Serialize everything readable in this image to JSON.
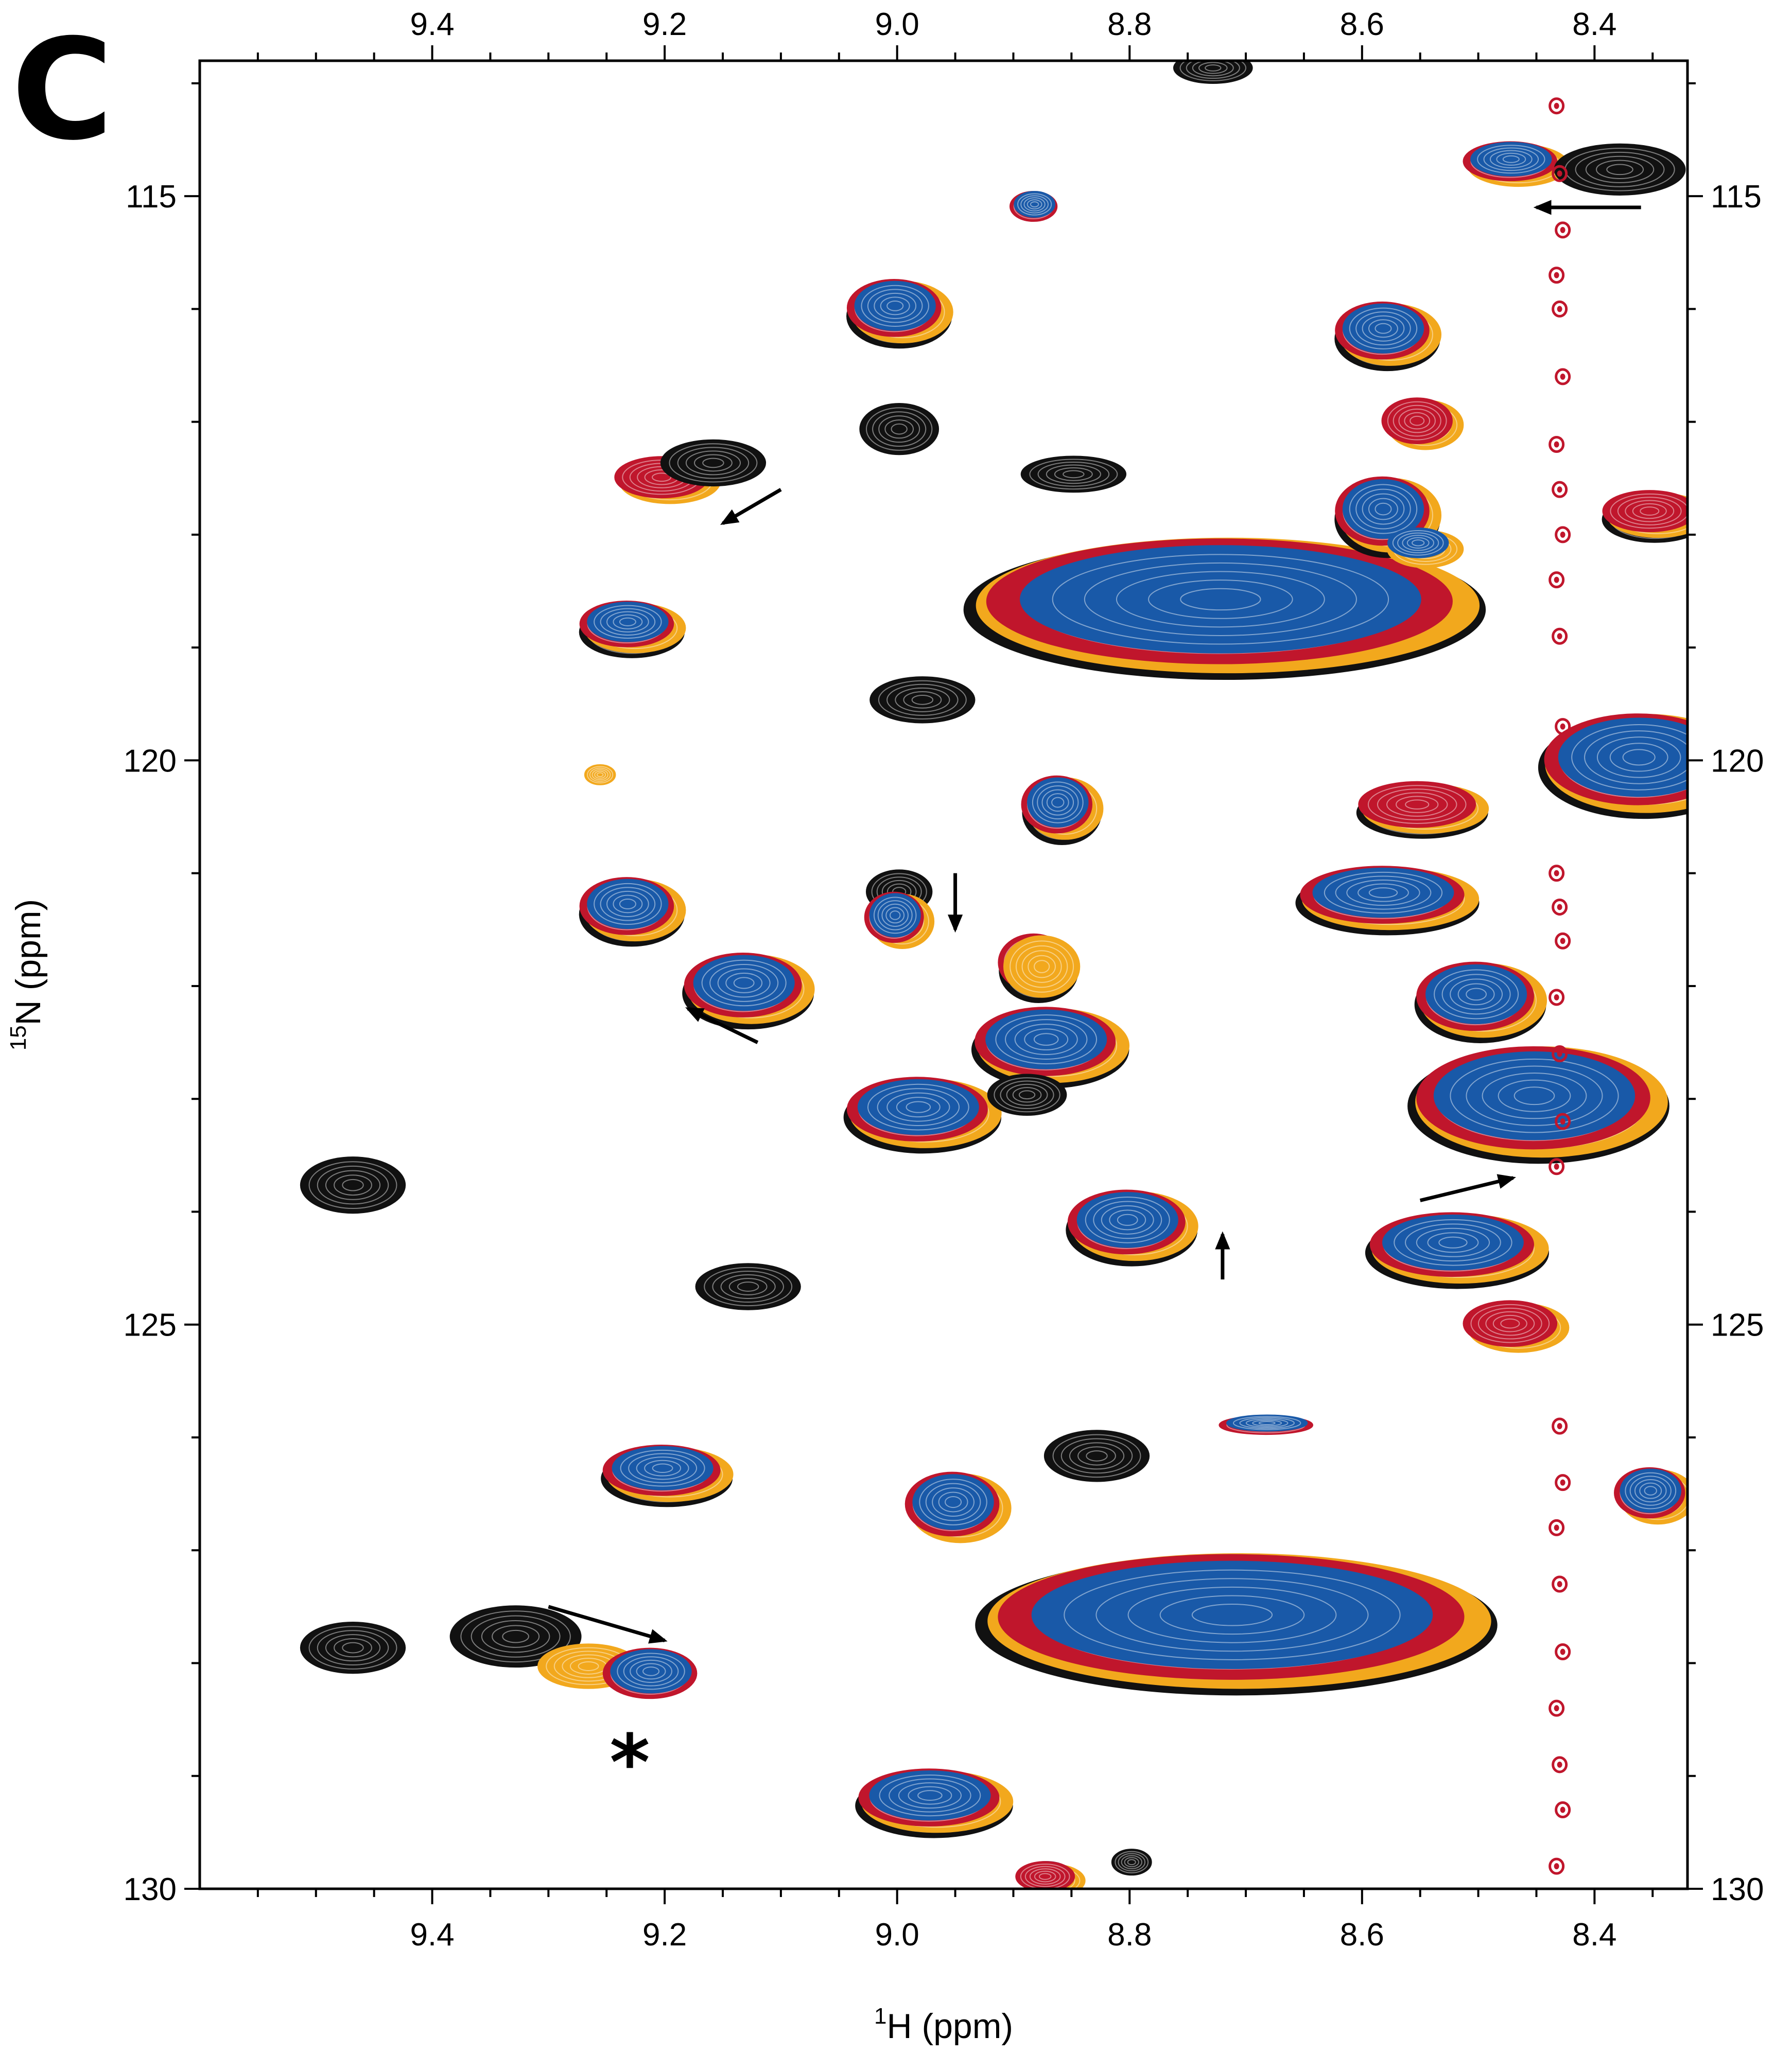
{
  "panel_label": "C",
  "chart_data": {
    "type": "scatter",
    "plot_style": "2D NMR contour overlay (1H-15N HSQC)",
    "xlabel": {
      "isotope": "1",
      "nucleus": "H",
      "unit": "(ppm)"
    },
    "ylabel": {
      "isotope": "15",
      "nucleus": "N",
      "unit": "(ppm)"
    },
    "xlim": [
      9.6,
      8.32
    ],
    "ylim": [
      130,
      113.8
    ],
    "x_reversed": true,
    "y_reversed": true,
    "grid": false,
    "mirror_axes": true,
    "x_ticks": [
      9.4,
      9.2,
      9.0,
      8.8,
      8.6,
      8.4
    ],
    "x_tick_labels": [
      "9.4",
      "9.2",
      "9.0",
      "8.8",
      "8.6",
      "8.4"
    ],
    "y_ticks": [
      115,
      120,
      125,
      130
    ],
    "y_tick_labels": [
      "115",
      "120",
      "125",
      "130"
    ],
    "colors": {
      "black": "#111111",
      "orange": "#f2a81d",
      "red": "#c0162c",
      "blue": "#1959a8"
    },
    "peaks": [
      {
        "x": 9.47,
        "y": 123.7,
        "w": 0.04,
        "h": 0.22,
        "layers": [
          "black"
        ]
      },
      {
        "x": 9.47,
        "y": 127.8,
        "w": 0.04,
        "h": 0.2,
        "layers": [
          "black"
        ]
      },
      {
        "x": 9.33,
        "y": 127.7,
        "w": 0.05,
        "h": 0.24,
        "layers": [
          "black"
        ]
      },
      {
        "x": 9.27,
        "y": 128.0,
        "w": 0.04,
        "h": 0.18,
        "layers": [
          "orange"
        ]
      },
      {
        "x": 9.21,
        "y": 128.1,
        "w": 0.04,
        "h": 0.22,
        "layers": [
          "red",
          "blue"
        ]
      },
      {
        "x": 9.26,
        "y": 120.1,
        "w": 0.012,
        "h": 0.08,
        "layers": [
          "orange"
        ]
      },
      {
        "x": 9.23,
        "y": 121.3,
        "w": 0.04,
        "h": 0.25,
        "layers": [
          "black",
          "orange",
          "red",
          "blue"
        ]
      },
      {
        "x": 9.23,
        "y": 118.8,
        "w": 0.04,
        "h": 0.2,
        "layers": [
          "black",
          "orange",
          "red",
          "blue"
        ]
      },
      {
        "x": 9.2,
        "y": 126.3,
        "w": 0.05,
        "h": 0.22,
        "layers": [
          "black",
          "orange",
          "red",
          "blue"
        ]
      },
      {
        "x": 9.2,
        "y": 117.5,
        "w": 0.04,
        "h": 0.18,
        "layers": [
          "orange",
          "red"
        ]
      },
      {
        "x": 9.16,
        "y": 117.3,
        "w": 0.04,
        "h": 0.18,
        "layers": [
          "black"
        ]
      },
      {
        "x": 9.13,
        "y": 124.6,
        "w": 0.04,
        "h": 0.18,
        "layers": [
          "black"
        ]
      },
      {
        "x": 9.13,
        "y": 122.0,
        "w": 0.05,
        "h": 0.28,
        "layers": [
          "black",
          "orange",
          "red",
          "blue"
        ]
      },
      {
        "x": 9.0,
        "y": 116.0,
        "w": 0.04,
        "h": 0.25,
        "layers": [
          "black",
          "orange",
          "red",
          "blue"
        ]
      },
      {
        "x": 9.0,
        "y": 117.0,
        "w": 0.03,
        "h": 0.2,
        "layers": [
          "black"
        ]
      },
      {
        "x": 8.98,
        "y": 119.4,
        "w": 0.04,
        "h": 0.18,
        "layers": [
          "black"
        ]
      },
      {
        "x": 9.0,
        "y": 121.1,
        "w": 0.025,
        "h": 0.17,
        "layers": [
          "black"
        ]
      },
      {
        "x": 9.0,
        "y": 121.4,
        "w": 0.025,
        "h": 0.22,
        "layers": [
          "orange",
          "red",
          "blue"
        ]
      },
      {
        "x": 8.98,
        "y": 123.1,
        "w": 0.06,
        "h": 0.28,
        "layers": [
          "black",
          "orange",
          "red",
          "blue"
        ]
      },
      {
        "x": 8.95,
        "y": 126.6,
        "w": 0.04,
        "h": 0.28,
        "layers": [
          "orange",
          "red",
          "blue"
        ]
      },
      {
        "x": 8.97,
        "y": 129.2,
        "w": 0.06,
        "h": 0.25,
        "layers": [
          "black",
          "orange",
          "red",
          "blue"
        ]
      },
      {
        "x": 8.88,
        "y": 115.1,
        "w": 0.02,
        "h": 0.13,
        "layers": [
          "red",
          "blue"
        ]
      },
      {
        "x": 8.85,
        "y": 117.4,
        "w": 0.04,
        "h": 0.14,
        "layers": [
          "black"
        ]
      },
      {
        "x": 8.88,
        "y": 121.8,
        "w": 0.03,
        "h": 0.25,
        "layers": [
          "black",
          "red",
          "orange"
        ]
      },
      {
        "x": 8.86,
        "y": 120.4,
        "w": 0.03,
        "h": 0.25,
        "layers": [
          "black",
          "orange",
          "red",
          "blue"
        ]
      },
      {
        "x": 8.87,
        "y": 122.5,
        "w": 0.06,
        "h": 0.3,
        "layers": [
          "black",
          "orange",
          "red",
          "blue"
        ]
      },
      {
        "x": 8.89,
        "y": 122.9,
        "w": 0.03,
        "h": 0.16,
        "layers": [
          "black"
        ]
      },
      {
        "x": 8.83,
        "y": 126.1,
        "w": 0.04,
        "h": 0.2,
        "layers": [
          "black"
        ]
      },
      {
        "x": 8.8,
        "y": 124.1,
        "w": 0.05,
        "h": 0.28,
        "layers": [
          "black",
          "orange",
          "red",
          "blue"
        ]
      },
      {
        "x": 8.87,
        "y": 129.9,
        "w": 0.025,
        "h": 0.13,
        "layers": [
          "blue",
          "orange",
          "red"
        ]
      },
      {
        "x": 8.8,
        "y": 129.7,
        "w": 0.015,
        "h": 0.1,
        "layers": [
          "black"
        ]
      },
      {
        "x": 8.68,
        "y": 125.9,
        "w": 0.04,
        "h": 0.08,
        "layers": [
          "red",
          "blue"
        ]
      },
      {
        "x": 8.73,
        "y": 113.8,
        "w": 0.03,
        "h": 0.12,
        "layers": [
          "black"
        ]
      },
      {
        "x": 8.72,
        "y": 118.6,
        "w": 0.2,
        "h": 0.55,
        "layers": [
          "black",
          "orange",
          "red",
          "blue"
        ]
      },
      {
        "x": 8.71,
        "y": 127.6,
        "w": 0.2,
        "h": 0.55,
        "layers": [
          "black",
          "orange",
          "red",
          "blue"
        ]
      },
      {
        "x": 8.58,
        "y": 116.2,
        "w": 0.04,
        "h": 0.25,
        "layers": [
          "black",
          "orange",
          "red",
          "blue"
        ]
      },
      {
        "x": 8.58,
        "y": 117.8,
        "w": 0.04,
        "h": 0.3,
        "layers": [
          "black",
          "orange",
          "red",
          "blue"
        ]
      },
      {
        "x": 8.55,
        "y": 117.0,
        "w": 0.03,
        "h": 0.2,
        "layers": [
          "orange",
          "red"
        ]
      },
      {
        "x": 8.55,
        "y": 118.1,
        "w": 0.03,
        "h": 0.15,
        "layers": [
          "orange",
          "blue"
        ]
      },
      {
        "x": 8.58,
        "y": 121.2,
        "w": 0.07,
        "h": 0.25,
        "layers": [
          "black",
          "orange",
          "red",
          "blue"
        ]
      },
      {
        "x": 8.55,
        "y": 120.4,
        "w": 0.05,
        "h": 0.2,
        "layers": [
          "black",
          "orange",
          "red"
        ]
      },
      {
        "x": 8.52,
        "y": 124.3,
        "w": 0.07,
        "h": 0.28,
        "layers": [
          "black",
          "orange",
          "red",
          "blue"
        ]
      },
      {
        "x": 8.47,
        "y": 125.0,
        "w": 0.04,
        "h": 0.2,
        "layers": [
          "orange",
          "red"
        ]
      },
      {
        "x": 8.5,
        "y": 122.1,
        "w": 0.05,
        "h": 0.3,
        "layers": [
          "black",
          "orange",
          "red",
          "blue"
        ]
      },
      {
        "x": 8.45,
        "y": 123.0,
        "w": 0.1,
        "h": 0.45,
        "layers": [
          "black",
          "orange",
          "red",
          "blue"
        ]
      },
      {
        "x": 8.47,
        "y": 114.7,
        "w": 0.04,
        "h": 0.17,
        "layers": [
          "orange",
          "red",
          "blue"
        ]
      },
      {
        "x": 8.38,
        "y": 114.7,
        "w": 0.05,
        "h": 0.2,
        "layers": [
          "black"
        ]
      },
      {
        "x": 8.35,
        "y": 117.8,
        "w": 0.04,
        "h": 0.18,
        "layers": [
          "black",
          "orange",
          "red"
        ]
      },
      {
        "x": 8.36,
        "y": 120.0,
        "w": 0.08,
        "h": 0.4,
        "layers": [
          "black",
          "orange",
          "red",
          "blue"
        ]
      },
      {
        "x": 8.35,
        "y": 126.5,
        "w": 0.03,
        "h": 0.22,
        "layers": [
          "orange",
          "red",
          "blue"
        ]
      }
    ],
    "vertical_streak": {
      "x": 8.43,
      "color": "red",
      "points": [
        114.2,
        114.8,
        115.3,
        115.7,
        116.0,
        116.6,
        117.2,
        117.6,
        118.0,
        118.4,
        118.9,
        119.7,
        121.0,
        121.3,
        121.6,
        122.1,
        122.6,
        123.2,
        123.6,
        125.9,
        126.4,
        126.8,
        127.3,
        127.9,
        128.4,
        128.9,
        129.3,
        129.8
      ]
    },
    "annotations": {
      "arrows": [
        {
          "x1": 8.36,
          "y1": 115.1,
          "x2": 8.45,
          "y2": 115.1
        },
        {
          "x1": 9.1,
          "y1": 117.6,
          "x2": 9.15,
          "y2": 117.9
        },
        {
          "x1": 9.12,
          "y1": 122.5,
          "x2": 9.18,
          "y2": 122.2
        },
        {
          "x1": 8.95,
          "y1": 121.0,
          "x2": 8.95,
          "y2": 121.5
        },
        {
          "x1": 8.72,
          "y1": 124.6,
          "x2": 8.72,
          "y2": 124.2
        },
        {
          "x1": 8.55,
          "y1": 123.9,
          "x2": 8.47,
          "y2": 123.7
        },
        {
          "x1": 9.3,
          "y1": 127.5,
          "x2": 9.2,
          "y2": 127.8
        }
      ],
      "star": {
        "text": "*",
        "x": 9.23,
        "y": 128.8
      }
    }
  }
}
